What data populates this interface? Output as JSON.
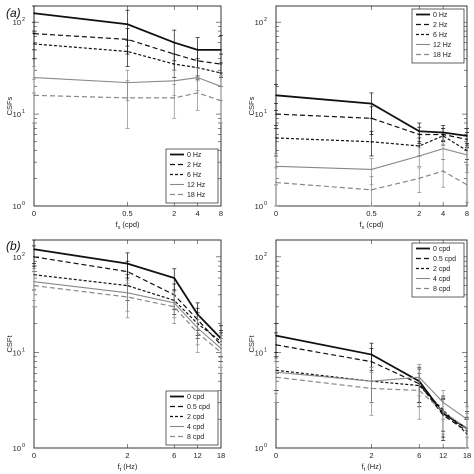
{
  "row_labels": [
    "(a)",
    "(b)"
  ],
  "chart_data": [
    {
      "type": "line",
      "ylabel": "CSFs",
      "xlabel_main": "f",
      "xlabel_sub": "x",
      "xlabel_unit": "(cpd)",
      "y_scale": "log",
      "ylim": [
        1,
        150
      ],
      "y_ticks": [
        {
          "v": 1,
          "label": "10",
          "exp": "0"
        },
        {
          "v": 10,
          "label": "10",
          "exp": "1"
        },
        {
          "v": 100,
          "label": "10",
          "exp": "2"
        }
      ],
      "x_ticks": [
        "0",
        "0.5",
        "2",
        "4",
        "8"
      ],
      "legend_position": "bottom-right",
      "series": [
        {
          "name": "0 Hz",
          "style": "solid-thick",
          "color": "#111111",
          "values": [
            125,
            95,
            60,
            50,
            50
          ],
          "err": [
            45,
            40,
            22,
            18,
            22
          ]
        },
        {
          "name": "2 Hz",
          "style": "dashed",
          "color": "#111111",
          "values": [
            75,
            65,
            45,
            38,
            35
          ],
          "err": [
            25,
            20,
            15,
            12,
            10
          ]
        },
        {
          "name": "6 Hz",
          "style": "dashed-fine",
          "color": "#111111",
          "values": [
            58,
            48,
            35,
            32,
            28
          ],
          "err": [
            18,
            15,
            10,
            8,
            8
          ]
        },
        {
          "name": "12 Hz",
          "style": "solid",
          "color": "#888888",
          "values": [
            25,
            22,
            23,
            25,
            20
          ],
          "err": [
            8,
            8,
            7,
            7,
            6
          ]
        },
        {
          "name": "18 Hz",
          "style": "dashed",
          "color": "#888888",
          "values": [
            16,
            15,
            15,
            17,
            14
          ],
          "err": [
            8,
            8,
            6,
            6,
            6
          ]
        }
      ]
    },
    {
      "type": "line",
      "ylabel": "CSFs",
      "xlabel_main": "f",
      "xlabel_sub": "x",
      "xlabel_unit": "(cpd)",
      "y_scale": "log",
      "ylim": [
        1,
        150
      ],
      "y_ticks": [
        {
          "v": 1,
          "label": "10",
          "exp": "0"
        },
        {
          "v": 10,
          "label": "10",
          "exp": "1"
        },
        {
          "v": 100,
          "label": "10",
          "exp": "2"
        }
      ],
      "x_ticks": [
        "0",
        "0.5",
        "2",
        "4",
        "8"
      ],
      "legend_position": "top-right",
      "series": [
        {
          "name": "0 Hz",
          "style": "solid-thick",
          "color": "#111111",
          "values": [
            16,
            13,
            6.5,
            6.3,
            5.8
          ],
          "err": [
            5,
            4,
            1.5,
            1.2,
            1.2
          ]
        },
        {
          "name": "2 Hz",
          "style": "dashed",
          "color": "#111111",
          "values": [
            10,
            9,
            6,
            6,
            5.3
          ],
          "err": [
            3,
            3,
            1.2,
            1,
            1
          ]
        },
        {
          "name": "6 Hz",
          "style": "dashed-fine",
          "color": "#111111",
          "values": [
            5.5,
            5,
            4.5,
            5.8,
            4
          ],
          "err": [
            2,
            1.5,
            1,
            1.2,
            0.8
          ]
        },
        {
          "name": "12 Hz",
          "style": "solid",
          "color": "#888888",
          "values": [
            2.7,
            2.5,
            3.5,
            4.2,
            3.6
          ],
          "err": [
            1,
            0.8,
            0.8,
            1,
            0.8
          ]
        },
        {
          "name": "18 Hz",
          "style": "dashed",
          "color": "#888888",
          "values": [
            1.8,
            1.5,
            2,
            2.4,
            1.7
          ],
          "err": [
            0.8,
            0.6,
            0.6,
            0.8,
            0.6
          ]
        }
      ]
    },
    {
      "type": "line",
      "ylabel": "CSFt",
      "xlabel_main": "f",
      "xlabel_sub": "t",
      "xlabel_unit": "(Hz)",
      "y_scale": "log",
      "ylim": [
        1,
        150
      ],
      "y_ticks": [
        {
          "v": 1,
          "label": "10",
          "exp": "0"
        },
        {
          "v": 10,
          "label": "10",
          "exp": "1"
        },
        {
          "v": 100,
          "label": "10",
          "exp": "2"
        }
      ],
      "x_ticks": [
        "0",
        "2",
        "6",
        "12",
        "18"
      ],
      "legend_position": "bottom-right",
      "series": [
        {
          "name": "0 cpd",
          "style": "solid-thick",
          "color": "#111111",
          "values": [
            120,
            85,
            60,
            25,
            14
          ],
          "err": [
            40,
            25,
            15,
            8,
            5
          ]
        },
        {
          "name": "0.5 cpd",
          "style": "dashed",
          "color": "#111111",
          "values": [
            100,
            70,
            40,
            22,
            12
          ],
          "err": [
            30,
            20,
            12,
            7,
            4
          ]
        },
        {
          "name": "2 cpd",
          "style": "dashed-fine",
          "color": "#111111",
          "values": [
            65,
            50,
            35,
            20,
            13
          ],
          "err": [
            20,
            15,
            10,
            6,
            4
          ]
        },
        {
          "name": "4 cpd",
          "style": "solid",
          "color": "#888888",
          "values": [
            55,
            42,
            33,
            18,
            11
          ],
          "err": [
            20,
            15,
            10,
            6,
            4
          ]
        },
        {
          "name": "8 cpd",
          "style": "dashed",
          "color": "#888888",
          "values": [
            50,
            38,
            30,
            16,
            10
          ],
          "err": [
            20,
            15,
            10,
            6,
            4
          ]
        }
      ]
    },
    {
      "type": "line",
      "ylabel": "CSFt",
      "xlabel_main": "f",
      "xlabel_sub": "t",
      "xlabel_unit": "(Hz)",
      "y_scale": "log",
      "ylim": [
        1,
        150
      ],
      "y_ticks": [
        {
          "v": 1,
          "label": "10",
          "exp": "0"
        },
        {
          "v": 10,
          "label": "10",
          "exp": "1"
        },
        {
          "v": 100,
          "label": "10",
          "exp": "2"
        }
      ],
      "x_ticks": [
        "0",
        "2",
        "6",
        "12",
        "18"
      ],
      "legend_position": "top-right",
      "series": [
        {
          "name": "0 cpd",
          "style": "solid-thick",
          "color": "#111111",
          "values": [
            15,
            9.5,
            5,
            2.3,
            1.6
          ],
          "err": [
            5,
            3,
            2,
            1,
            0.8
          ]
        },
        {
          "name": "0.5 cpd",
          "style": "dashed",
          "color": "#111111",
          "values": [
            12,
            8,
            4.7,
            2.2,
            1.5
          ],
          "err": [
            4,
            3,
            2,
            1,
            0.6
          ]
        },
        {
          "name": "2 cpd",
          "style": "dashed-fine",
          "color": "#111111",
          "values": [
            6.5,
            5,
            4.5,
            2.5,
            1.4
          ],
          "err": [
            2.5,
            2,
            1.5,
            1,
            0.6
          ]
        },
        {
          "name": "4 cpd",
          "style": "solid",
          "color": "#888888",
          "values": [
            6.2,
            5,
            5.5,
            3,
            2
          ],
          "err": [
            2.5,
            2,
            2,
            1,
            0.7
          ]
        },
        {
          "name": "8 cpd",
          "style": "dashed",
          "color": "#888888",
          "values": [
            5.5,
            4.2,
            4,
            2.4,
            1.6
          ],
          "err": [
            2.5,
            2,
            2,
            1,
            0.7
          ]
        }
      ]
    }
  ]
}
